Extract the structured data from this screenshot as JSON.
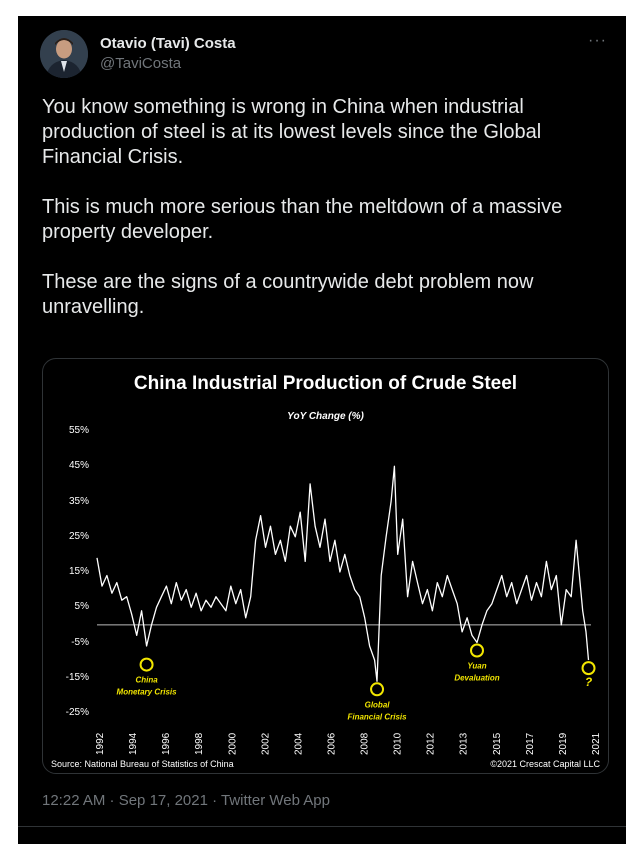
{
  "tweet": {
    "author_name": "Otavio (Tavi) Costa",
    "author_handle": "@TaviCosta",
    "paragraphs": [
      "You know something is wrong in China when industrial production of steel is at its lowest levels since the Global Financial Crisis.",
      "This is much more serious than the meltdown of a massive property developer.",
      "These are the signs of a countrywide debt problem now unravelling."
    ],
    "timestamp": "12:22 AM · Sep 17, 2021 · Twitter Web App",
    "more_icon": "more-horizontal-icon"
  },
  "chart_data": {
    "type": "line",
    "title": "China Industrial Production of Crude Steel",
    "subtitle": "YoY Change (%)",
    "ylabel": "",
    "ylim": [
      -25,
      55
    ],
    "yticks": [
      "55%",
      "45%",
      "35%",
      "25%",
      "15%",
      "5%",
      "-5%",
      "-15%",
      "-25%"
    ],
    "xticks": [
      "1992",
      "1994",
      "1996",
      "1998",
      "2000",
      "2002",
      "2004",
      "2006",
      "2008",
      "2010",
      "2012",
      "2013",
      "2015",
      "2017",
      "2019",
      "2021"
    ],
    "xlim": [
      1992,
      2021.9
    ],
    "line_color": "#ffffff",
    "zero_line_color": "#bbbbbb",
    "series": [
      {
        "name": "",
        "x": [
          1992.0,
          1992.3,
          1992.6,
          1992.9,
          1993.2,
          1993.5,
          1993.8,
          1994.1,
          1994.4,
          1994.7,
          1995.0,
          1995.3,
          1995.6,
          1995.9,
          1996.2,
          1996.5,
          1996.8,
          1997.1,
          1997.4,
          1997.7,
          1998.0,
          1998.3,
          1998.6,
          1998.9,
          1999.2,
          1999.5,
          1999.8,
          2000.1,
          2000.4,
          2000.7,
          2001.0,
          2001.3,
          2001.6,
          2001.9,
          2002.2,
          2002.5,
          2002.8,
          2003.1,
          2003.4,
          2003.7,
          2004.0,
          2004.3,
          2004.6,
          2004.9,
          2005.2,
          2005.5,
          2005.8,
          2006.1,
          2006.4,
          2006.7,
          2007.0,
          2007.3,
          2007.6,
          2007.9,
          2008.2,
          2008.5,
          2008.8,
          2008.95,
          2009.2,
          2009.5,
          2009.8,
          2010.0,
          2010.2,
          2010.5,
          2010.8,
          2011.1,
          2011.4,
          2011.7,
          2012.0,
          2012.3,
          2012.6,
          2012.9,
          2013.2,
          2013.5,
          2013.8,
          2014.1,
          2014.4,
          2014.7,
          2015.0,
          2015.3,
          2015.6,
          2015.9,
          2016.2,
          2016.5,
          2016.8,
          2017.1,
          2017.4,
          2017.7,
          2018.0,
          2018.3,
          2018.6,
          2018.9,
          2019.2,
          2019.5,
          2019.8,
          2020.1,
          2020.4,
          2020.7,
          2021.0,
          2021.2,
          2021.4,
          2021.6,
          2021.75
        ],
        "values": [
          19,
          11,
          14,
          9,
          12,
          7,
          8,
          3,
          -3,
          4,
          -6,
          0,
          5,
          8,
          11,
          6,
          12,
          7,
          10,
          5,
          9,
          4,
          7,
          5,
          8,
          6,
          4,
          11,
          6,
          10,
          2,
          8,
          24,
          31,
          22,
          28,
          20,
          24,
          18,
          28,
          25,
          32,
          18,
          40,
          28,
          22,
          30,
          18,
          24,
          15,
          20,
          14,
          10,
          8,
          2,
          -6,
          -10,
          -16,
          14,
          25,
          35,
          45,
          20,
          30,
          8,
          18,
          12,
          6,
          10,
          4,
          12,
          8,
          14,
          10,
          6,
          -2,
          2,
          -3,
          -5,
          0,
          4,
          6,
          10,
          14,
          8,
          12,
          6,
          10,
          14,
          7,
          12,
          8,
          18,
          10,
          14,
          0,
          10,
          8,
          24,
          14,
          4,
          -2,
          -10
        ]
      }
    ],
    "annotations": [
      {
        "label": "China\nMonetary Crisis",
        "x": 1995.0,
        "y": -9
      },
      {
        "label": "Global\nFinancial Crisis",
        "x": 2008.95,
        "y": -16
      },
      {
        "label": "Yuan\nDevaluation",
        "x": 2015.0,
        "y": -5
      },
      {
        "label": "?",
        "x": 2021.75,
        "y": -10
      }
    ],
    "annotation_color": "#f2e600",
    "source": "Source: National Bureau of Statistics of China",
    "copyright": "©2021 Crescat Capital LLC"
  }
}
